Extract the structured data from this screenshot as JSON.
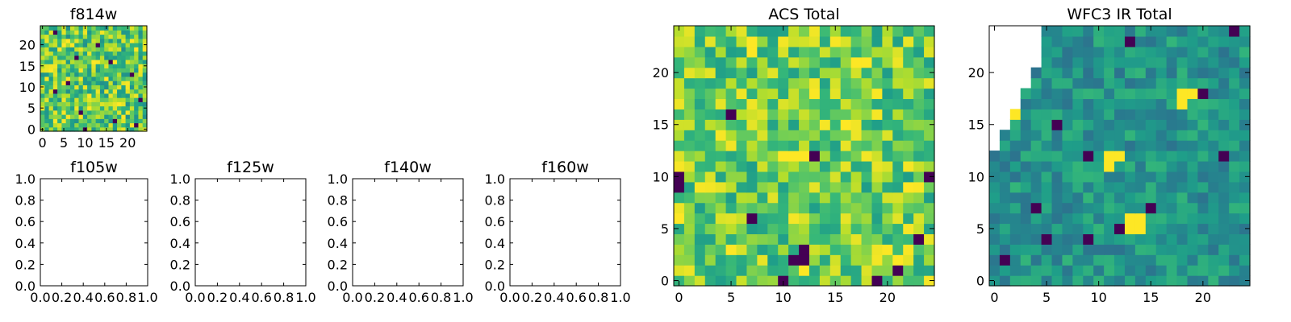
{
  "chart_data": [
    {
      "id": "f814w",
      "type": "heatmap",
      "title": "f814w",
      "grid_size": 25,
      "xlim": [
        -0.5,
        24.5
      ],
      "ylim": [
        -0.5,
        24.5
      ],
      "xticks": [
        0,
        5,
        10,
        15,
        20
      ],
      "yticks": [
        0,
        5,
        10,
        15,
        20
      ],
      "colormap": "viridis",
      "dark_pixels": [
        [
          3,
          23
        ],
        [
          6,
          11
        ],
        [
          9,
          4
        ],
        [
          13,
          20
        ],
        [
          21,
          13
        ],
        [
          23,
          7
        ],
        [
          17,
          2
        ],
        [
          3,
          9
        ],
        [
          16,
          16
        ],
        [
          8,
          17
        ],
        [
          10,
          0
        ],
        [
          22,
          1
        ]
      ],
      "bright_pixels": [
        [
          5,
          20
        ],
        [
          6,
          21
        ],
        [
          11,
          8
        ],
        [
          15,
          12
        ],
        [
          19,
          3
        ],
        [
          2,
          14
        ],
        [
          12,
          16
        ]
      ]
    },
    {
      "id": "f105w",
      "type": "heatmap",
      "title": "f105w",
      "xlim": [
        0.0,
        1.0
      ],
      "ylim": [
        0.0,
        1.0
      ],
      "xticks": [
        "0.0",
        "0.2",
        "0.4",
        "0.6",
        "0.8",
        "1.0"
      ],
      "yticks": [
        "0.0",
        "0.2",
        "0.4",
        "0.6",
        "0.8",
        "1.0"
      ],
      "empty": true
    },
    {
      "id": "f125w",
      "type": "heatmap",
      "title": "f125w",
      "xlim": [
        0.0,
        1.0
      ],
      "ylim": [
        0.0,
        1.0
      ],
      "xticks": [
        "0.0",
        "0.2",
        "0.4",
        "0.6",
        "0.8",
        "1.0"
      ],
      "yticks": [
        "0.0",
        "0.2",
        "0.4",
        "0.6",
        "0.8",
        "1.0"
      ],
      "empty": true
    },
    {
      "id": "f140w",
      "type": "heatmap",
      "title": "f140w",
      "xlim": [
        0.0,
        1.0
      ],
      "ylim": [
        0.0,
        1.0
      ],
      "xticks": [
        "0.0",
        "0.2",
        "0.4",
        "0.6",
        "0.8",
        "1.0"
      ],
      "yticks": [
        "0.0",
        "0.2",
        "0.4",
        "0.6",
        "0.8",
        "1.0"
      ],
      "empty": true
    },
    {
      "id": "f160w",
      "type": "heatmap",
      "title": "f160w",
      "xlim": [
        0.0,
        1.0
      ],
      "ylim": [
        0.0,
        1.0
      ],
      "xticks": [
        "0.0",
        "0.2",
        "0.4",
        "0.6",
        "0.8",
        "1.0"
      ],
      "yticks": [
        "0.0",
        "0.2",
        "0.4",
        "0.6",
        "0.8",
        "1.0"
      ],
      "empty": true
    },
    {
      "id": "acs_total",
      "type": "heatmap",
      "title": "ACS Total",
      "grid_size": 25,
      "xlim": [
        -0.5,
        24.5
      ],
      "ylim": [
        -0.5,
        24.5
      ],
      "xticks": [
        0,
        5,
        10,
        15,
        20
      ],
      "yticks": [
        0,
        5,
        10,
        15,
        20
      ],
      "colormap": "viridis",
      "dark_pixels": [
        [
          0,
          10
        ],
        [
          0,
          9
        ],
        [
          5,
          16
        ],
        [
          7,
          6
        ],
        [
          11,
          2
        ],
        [
          12,
          2
        ],
        [
          13,
          12
        ],
        [
          10,
          0
        ],
        [
          19,
          0
        ],
        [
          21,
          1
        ],
        [
          23,
          4
        ],
        [
          24,
          10
        ],
        [
          12,
          3
        ]
      ],
      "bright_pixels": [
        [
          7,
          22
        ],
        [
          7,
          23
        ],
        [
          10,
          12
        ],
        [
          11,
          12
        ],
        [
          12,
          12
        ],
        [
          0,
          6
        ],
        [
          17,
          21
        ],
        [
          18,
          21
        ],
        [
          16,
          15
        ],
        [
          21,
          2
        ],
        [
          22,
          9
        ]
      ]
    },
    {
      "id": "wfc3_ir_total",
      "type": "heatmap",
      "title": "WFC3 IR Total",
      "grid_size": 25,
      "xlim": [
        -0.5,
        24.5
      ],
      "ylim": [
        -0.5,
        24.5
      ],
      "xticks": [
        0,
        5,
        10,
        15,
        20
      ],
      "yticks": [
        0,
        5,
        10,
        15,
        20
      ],
      "colormap": "viridis",
      "dark_pixels": [
        [
          13,
          23
        ],
        [
          23,
          24
        ],
        [
          20,
          18
        ],
        [
          22,
          12
        ],
        [
          6,
          15
        ],
        [
          9,
          12
        ],
        [
          4,
          7
        ],
        [
          15,
          7
        ],
        [
          5,
          4
        ],
        [
          9,
          4
        ],
        [
          1,
          2
        ],
        [
          12,
          5
        ]
      ],
      "bright_pixels": [
        [
          18,
          17
        ],
        [
          18,
          18
        ],
        [
          19,
          18
        ],
        [
          11,
          11
        ],
        [
          11,
          12
        ],
        [
          12,
          12
        ],
        [
          13,
          5
        ],
        [
          13,
          6
        ],
        [
          14,
          5
        ],
        [
          14,
          6
        ],
        [
          2,
          16
        ],
        [
          2,
          17
        ]
      ],
      "masked_corner": true
    }
  ]
}
